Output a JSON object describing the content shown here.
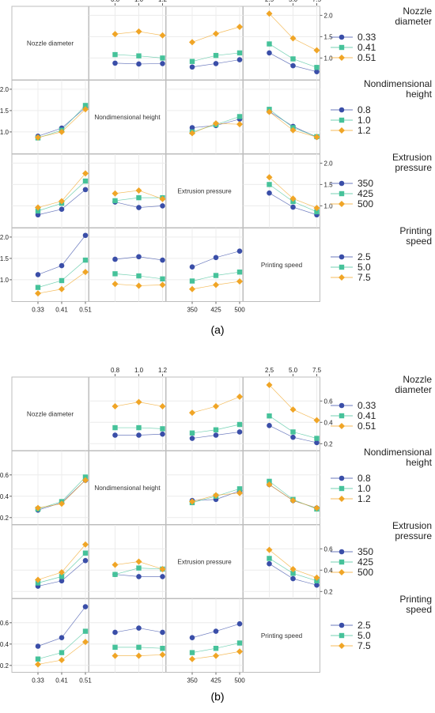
{
  "colors": {
    "low": "#3a4ea8",
    "mid": "#46c29a",
    "high": "#f0a526"
  },
  "factors": [
    {
      "key": "nozzle",
      "diag_label": "Nozzle diameter",
      "legend_title": [
        "Nozzle",
        "diameter"
      ],
      "levels": [
        "0.33",
        "0.41",
        "0.51"
      ]
    },
    {
      "key": "height",
      "diag_label": "Nondimensional height",
      "legend_title": [
        "Nondimensional",
        "height"
      ],
      "levels": [
        "0.8",
        "1.0",
        "1.2"
      ]
    },
    {
      "key": "pressure",
      "diag_label": "Extrusion pressure",
      "legend_title": [
        "Extrusion",
        "pressure"
      ],
      "levels": [
        "350",
        "425",
        "500"
      ]
    },
    {
      "key": "speed",
      "diag_label": "Printing speed",
      "legend_title": [
        "Printing",
        "speed"
      ],
      "levels": [
        "2.5",
        "5.0",
        "7.5"
      ]
    }
  ],
  "chart_data": [
    {
      "type": "line",
      "panel_label": "(a)",
      "ylim": [
        0.6,
        2.1
      ],
      "yticks": [
        1.0,
        1.5,
        2.0
      ],
      "tick_labels": [
        "1.0",
        "1.5",
        "2.0"
      ],
      "cells": [
        {
          "row": 0,
          "col": 1,
          "series": [
            [
              0.88,
              0.86,
              0.87
            ],
            [
              1.08,
              1.05,
              1.0
            ],
            [
              1.56,
              1.62,
              1.53
            ]
          ]
        },
        {
          "row": 0,
          "col": 2,
          "series": [
            [
              0.79,
              0.87,
              0.96
            ],
            [
              0.92,
              1.06,
              1.12
            ],
            [
              1.37,
              1.57,
              1.73
            ]
          ]
        },
        {
          "row": 0,
          "col": 3,
          "series": [
            [
              1.12,
              0.82,
              0.68
            ],
            [
              1.33,
              0.98,
              0.78
            ],
            [
              2.04,
              1.46,
              1.18
            ]
          ]
        },
        {
          "row": 1,
          "col": 0,
          "series": [
            [
              0.9,
              1.09,
              1.57
            ],
            [
              0.86,
              1.04,
              1.62
            ],
            [
              0.87,
              1.0,
              1.53
            ]
          ]
        },
        {
          "row": 1,
          "col": 2,
          "series": [
            [
              1.1,
              1.15,
              1.3
            ],
            [
              1.0,
              1.17,
              1.36
            ],
            [
              0.97,
              1.2,
              1.18
            ]
          ]
        },
        {
          "row": 1,
          "col": 3,
          "series": [
            [
              1.48,
              1.13,
              0.88
            ],
            [
              1.53,
              1.1,
              0.89
            ],
            [
              1.47,
              1.04,
              0.88
            ]
          ]
        },
        {
          "row": 2,
          "col": 0,
          "series": [
            [
              0.79,
              0.92,
              1.38
            ],
            [
              0.88,
              1.06,
              1.58
            ],
            [
              0.96,
              1.11,
              1.76
            ]
          ]
        },
        {
          "row": 2,
          "col": 1,
          "series": [
            [
              1.09,
              0.96,
              1.0
            ],
            [
              1.12,
              1.19,
              1.19
            ],
            [
              1.29,
              1.36,
              1.16
            ]
          ]
        },
        {
          "row": 2,
          "col": 3,
          "series": [
            [
              1.3,
              0.97,
              0.79
            ],
            [
              1.5,
              1.1,
              0.86
            ],
            [
              1.67,
              1.17,
              0.95
            ]
          ]
        },
        {
          "row": 3,
          "col": 0,
          "series": [
            [
              1.12,
              1.33,
              2.04
            ],
            [
              0.82,
              0.98,
              1.46
            ],
            [
              0.68,
              0.78,
              1.18
            ]
          ]
        },
        {
          "row": 3,
          "col": 1,
          "series": [
            [
              1.48,
              1.54,
              1.46
            ],
            [
              1.14,
              1.09,
              1.02
            ],
            [
              0.9,
              0.86,
              0.88
            ]
          ]
        },
        {
          "row": 3,
          "col": 2,
          "series": [
            [
              1.3,
              1.52,
              1.67
            ],
            [
              0.97,
              1.1,
              1.18
            ],
            [
              0.78,
              0.88,
              0.96
            ]
          ]
        }
      ]
    },
    {
      "type": "line",
      "panel_label": "(b)",
      "ylim": [
        0.18,
        0.78
      ],
      "yticks": [
        0.2,
        0.4,
        0.6
      ],
      "tick_labels": [
        "0.2",
        "0.4",
        "0.6"
      ],
      "cells": [
        {
          "row": 0,
          "col": 1,
          "series": [
            [
              0.28,
              0.28,
              0.29
            ],
            [
              0.35,
              0.35,
              0.34
            ],
            [
              0.55,
              0.59,
              0.55
            ]
          ]
        },
        {
          "row": 0,
          "col": 2,
          "series": [
            [
              0.25,
              0.28,
              0.31
            ],
            [
              0.3,
              0.33,
              0.38
            ],
            [
              0.49,
              0.55,
              0.64
            ]
          ]
        },
        {
          "row": 0,
          "col": 3,
          "series": [
            [
              0.37,
              0.26,
              0.21
            ],
            [
              0.46,
              0.31,
              0.25
            ],
            [
              0.75,
              0.52,
              0.42
            ]
          ]
        },
        {
          "row": 1,
          "col": 0,
          "series": [
            [
              0.27,
              0.34,
              0.55
            ],
            [
              0.28,
              0.35,
              0.58
            ],
            [
              0.29,
              0.33,
              0.55
            ]
          ]
        },
        {
          "row": 1,
          "col": 2,
          "series": [
            [
              0.36,
              0.37,
              0.45
            ],
            [
              0.34,
              0.4,
              0.47
            ],
            [
              0.35,
              0.41,
              0.43
            ]
          ]
        },
        {
          "row": 1,
          "col": 3,
          "series": [
            [
              0.51,
              0.36,
              0.29
            ],
            [
              0.54,
              0.37,
              0.28
            ],
            [
              0.51,
              0.36,
              0.29
            ]
          ]
        },
        {
          "row": 2,
          "col": 0,
          "series": [
            [
              0.25,
              0.3,
              0.49
            ],
            [
              0.28,
              0.34,
              0.56
            ],
            [
              0.31,
              0.38,
              0.64
            ]
          ]
        },
        {
          "row": 2,
          "col": 1,
          "series": [
            [
              0.36,
              0.34,
              0.34
            ],
            [
              0.36,
              0.42,
              0.41
            ],
            [
              0.45,
              0.48,
              0.41
            ]
          ]
        },
        {
          "row": 2,
          "col": 3,
          "series": [
            [
              0.46,
              0.32,
              0.26
            ],
            [
              0.51,
              0.37,
              0.3
            ],
            [
              0.59,
              0.41,
              0.33
            ]
          ]
        },
        {
          "row": 3,
          "col": 0,
          "series": [
            [
              0.38,
              0.46,
              0.75
            ],
            [
              0.26,
              0.32,
              0.52
            ],
            [
              0.21,
              0.25,
              0.42
            ]
          ]
        },
        {
          "row": 3,
          "col": 1,
          "series": [
            [
              0.51,
              0.55,
              0.51
            ],
            [
              0.37,
              0.37,
              0.36
            ],
            [
              0.29,
              0.29,
              0.3
            ]
          ]
        },
        {
          "row": 3,
          "col": 2,
          "series": [
            [
              0.46,
              0.52,
              0.59
            ],
            [
              0.32,
              0.36,
              0.41
            ],
            [
              0.26,
              0.29,
              0.33
            ]
          ]
        }
      ]
    }
  ]
}
